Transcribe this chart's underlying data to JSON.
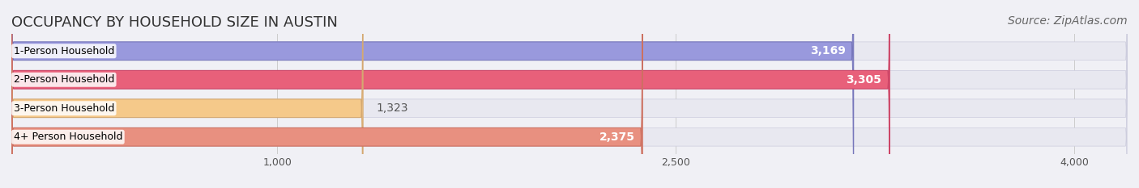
{
  "title": "OCCUPANCY BY HOUSEHOLD SIZE IN AUSTIN",
  "source": "Source: ZipAtlas.com",
  "categories": [
    "1-Person Household",
    "2-Person Household",
    "3-Person Household",
    "4+ Person Household"
  ],
  "values": [
    3169,
    3305,
    1323,
    2375
  ],
  "bar_colors": [
    "#9999dd",
    "#e8607a",
    "#f5c98a",
    "#e89080"
  ],
  "bar_edge_colors": [
    "#7777bb",
    "#cc4466",
    "#d4a870",
    "#cc7060"
  ],
  "label_colors": [
    "white",
    "white",
    "#666666",
    "#666666"
  ],
  "xlim": [
    0,
    4200
  ],
  "xticks": [
    1000,
    2500,
    4000
  ],
  "background_color": "#f0f0f5",
  "bar_bg_color": "#e8e8f0",
  "title_fontsize": 13,
  "source_fontsize": 10,
  "bar_label_fontsize": 10,
  "category_fontsize": 9,
  "bar_height": 0.62,
  "figsize": [
    14.06,
    2.33
  ],
  "dpi": 100
}
